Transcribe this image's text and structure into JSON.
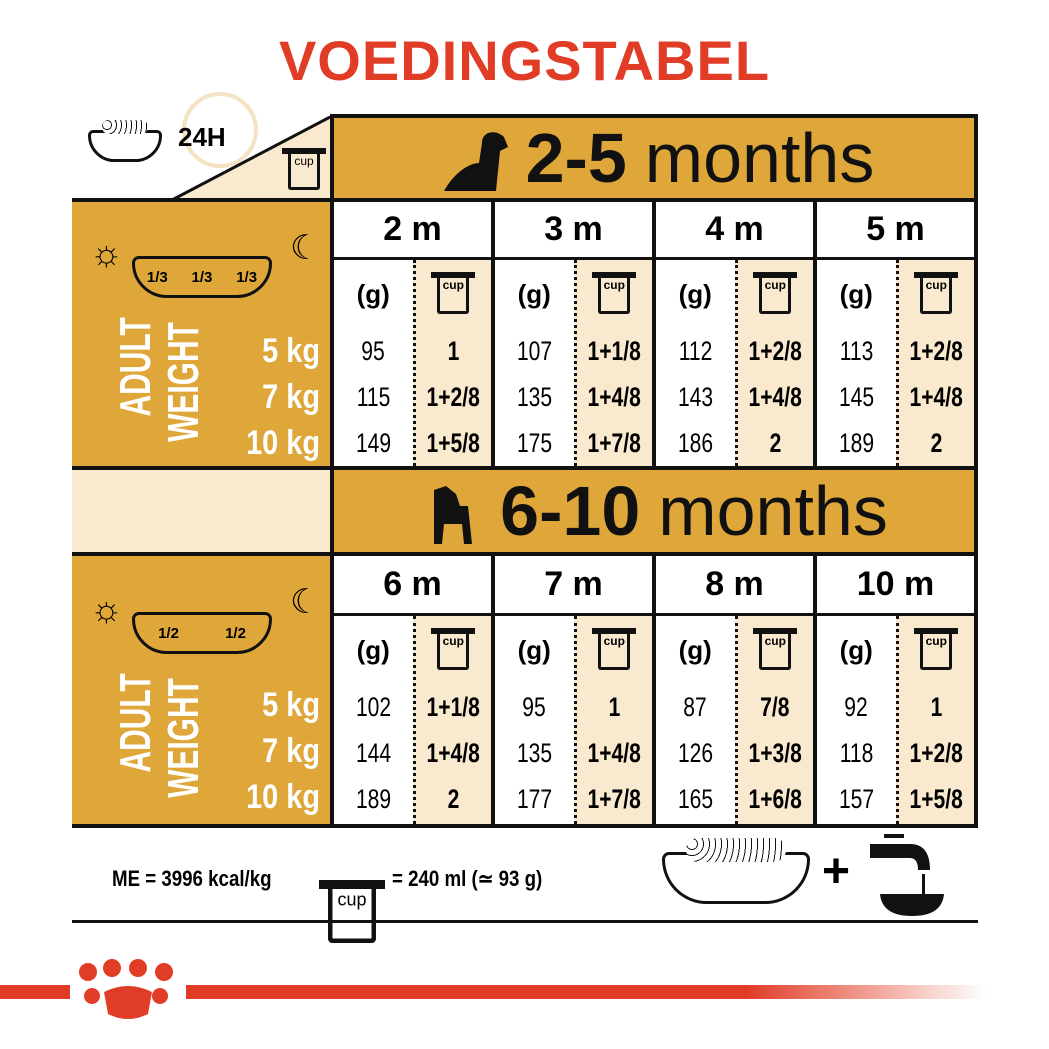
{
  "title": "VOEDINGSTABEL",
  "top_corner": {
    "label": "24H",
    "cup_label": "cup",
    "icons": [
      "food-bowl-icon",
      "clock-icon",
      "cup-icon"
    ]
  },
  "sections": [
    {
      "title_num": "2-5",
      "title_unit": "months",
      "icon": "puppy-sitting-icon",
      "portions": [
        "1/3",
        "1/3",
        "1/3"
      ],
      "months": [
        {
          "label": "2 m",
          "grams": [
            "95",
            "115",
            "149"
          ],
          "cups": [
            "1",
            "1+2/8",
            "1+5/8"
          ]
        },
        {
          "label": "3 m",
          "grams": [
            "107",
            "135",
            "175"
          ],
          "cups": [
            "1+1/8",
            "1+4/8",
            "1+7/8"
          ]
        },
        {
          "label": "4 m",
          "grams": [
            "112",
            "143",
            "186"
          ],
          "cups": [
            "1+2/8",
            "1+4/8",
            "2"
          ]
        },
        {
          "label": "5 m",
          "grams": [
            "113",
            "145",
            "189"
          ],
          "cups": [
            "1+2/8",
            "1+4/8",
            "2"
          ]
        }
      ]
    },
    {
      "title_num": "6-10",
      "title_unit": "months",
      "icon": "puppy-standing-icon",
      "portions": [
        "1/2",
        "1/2"
      ],
      "months": [
        {
          "label": "6 m",
          "grams": [
            "102",
            "144",
            "189"
          ],
          "cups": [
            "1+1/8",
            "1+4/8",
            "2"
          ]
        },
        {
          "label": "7 m",
          "grams": [
            "95",
            "135",
            "177"
          ],
          "cups": [
            "1",
            "1+4/8",
            "1+7/8"
          ]
        },
        {
          "label": "8 m",
          "grams": [
            "87",
            "126",
            "165"
          ],
          "cups": [
            "7/8",
            "1+3/8",
            "1+6/8"
          ]
        },
        {
          "label": "10 m",
          "grams": [
            "92",
            "118",
            "157"
          ],
          "cups": [
            "1",
            "1+2/8",
            "1+5/8"
          ]
        }
      ]
    }
  ],
  "grams_header": "(g)",
  "cup_label": "cup",
  "adult_weight": [
    "ADULT",
    "WEIGHT"
  ],
  "weights": [
    "5 kg",
    "7 kg",
    "10 kg"
  ],
  "footer": {
    "me": "ME = 3996 kcal/kg",
    "cup_label": "cup",
    "cup_eq": "= 240 ml (≃ 93 g)",
    "plus": "+"
  },
  "colors": {
    "title": "#e03c26",
    "gold": "#dfa73a",
    "cream": "#f9e9cf",
    "brand_red": "#e03c26"
  }
}
